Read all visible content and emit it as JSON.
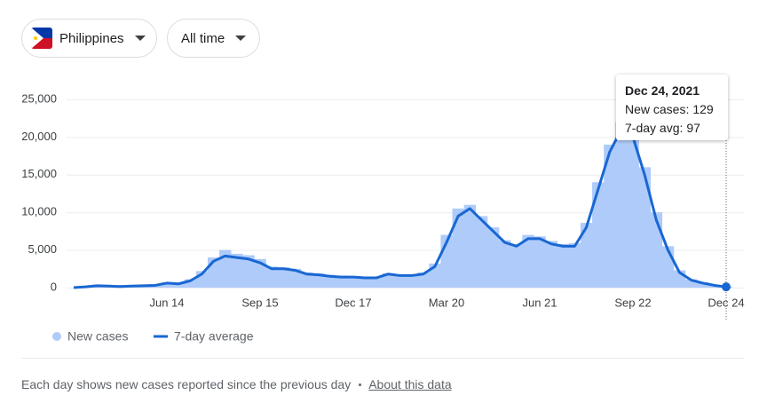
{
  "controls": {
    "region": "Philippines",
    "range": "All time"
  },
  "chart_data": {
    "type": "bar-line",
    "categories": [
      null,
      null,
      null,
      null,
      null,
      null,
      null,
      null,
      "Jun 14",
      null,
      null,
      null,
      null,
      null,
      null,
      null,
      "Sep 15",
      null,
      null,
      null,
      null,
      null,
      null,
      null,
      "Dec 17",
      null,
      null,
      null,
      null,
      null,
      null,
      null,
      "Mar 20",
      null,
      null,
      null,
      null,
      null,
      null,
      null,
      "Jun 21",
      null,
      null,
      null,
      null,
      null,
      null,
      null,
      "Sep 22",
      null,
      null,
      null,
      null,
      null,
      null,
      null,
      "Dec 24"
    ],
    "series": [
      {
        "name": "New cases",
        "color": "#aecbfa",
        "values": [
          0,
          150,
          300,
          250,
          200,
          250,
          300,
          350,
          700,
          600,
          1100,
          2200,
          4000,
          5000,
          4500,
          4300,
          3800,
          2800,
          2700,
          2500,
          2000,
          1900,
          1700,
          1600,
          1500,
          1400,
          1400,
          1900,
          1700,
          1700,
          2000,
          3200,
          7000,
          10500,
          11000,
          9500,
          8000,
          6300,
          5800,
          7000,
          6800,
          6200,
          5800,
          5900,
          8600,
          14000,
          19000,
          22000,
          20500,
          16000,
          10000,
          5500,
          2300,
          1100,
          700,
          350,
          129
        ]
      },
      {
        "name": "7-day average",
        "color": "#1967d2",
        "values": [
          0,
          100,
          250,
          200,
          150,
          200,
          250,
          300,
          600,
          500,
          900,
          1800,
          3500,
          4200,
          4000,
          3800,
          3300,
          2500,
          2500,
          2300,
          1800,
          1700,
          1500,
          1400,
          1400,
          1300,
          1300,
          1800,
          1600,
          1600,
          1800,
          2800,
          6000,
          9500,
          10500,
          9000,
          7500,
          6000,
          5500,
          6500,
          6500,
          5800,
          5500,
          5500,
          8000,
          13000,
          18000,
          21000,
          20000,
          15000,
          9000,
          5000,
          2000,
          1000,
          600,
          300,
          97
        ]
      }
    ],
    "ylim": [
      0,
      25000
    ],
    "yticks": [
      0,
      {
        "value": 5000,
        "label": "5,000"
      },
      {
        "value": 10000,
        "label": "10,000"
      },
      {
        "value": 15000,
        "label": "15,000"
      },
      {
        "value": 20000,
        "label": "20,000"
      },
      {
        "value": 25000,
        "label": "25,000"
      }
    ],
    "grid": true,
    "tooltip": {
      "title": "Dec 24, 2021",
      "rows": [
        {
          "label": "New cases:",
          "value": 129
        },
        {
          "label": "7-day avg:",
          "value": 97
        }
      ]
    }
  },
  "footer": {
    "note": "Each day shows new cases reported since the previous day",
    "link": "About this data"
  }
}
